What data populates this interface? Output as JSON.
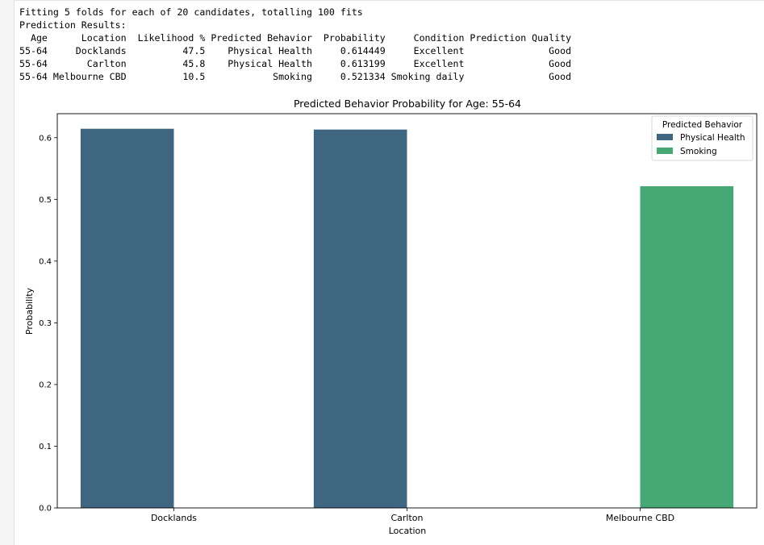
{
  "output": {
    "fit_message": "Fitting 5 folds for each of 20 candidates, totalling 100 fits",
    "results_heading": "Prediction Results:",
    "table_header": "  Age      Location  Likelihood % Predicted Behavior  Probability     Condition Prediction Quality",
    "table_rows": [
      "55-64     Docklands          47.5    Physical Health     0.614449     Excellent               Good",
      "55-64       Carlton          45.8    Physical Health     0.613199     Excellent               Good",
      "55-64 Melbourne CBD          10.5            Smoking     0.521334 Smoking daily               Good"
    ]
  },
  "chart_data": {
    "type": "bar",
    "title": "Predicted Behavior Probability for Age: 55-64",
    "xlabel": "Location",
    "ylabel": "Probability",
    "categories": [
      "Docklands",
      "Carlton",
      "Melbourne CBD"
    ],
    "ylim": [
      0,
      0.6389
    ],
    "yticks": [
      0.0,
      0.1,
      0.2,
      0.3,
      0.4,
      0.5,
      0.6
    ],
    "ytick_labels": [
      "0.0",
      "0.1",
      "0.2",
      "0.3",
      "0.4",
      "0.5",
      "0.6"
    ],
    "series": [
      {
        "name": "Physical Health",
        "color": "#3e6680",
        "values": [
          0.614449,
          0.613199,
          null
        ]
      },
      {
        "name": "Smoking",
        "color": "#45a875",
        "values": [
          null,
          null,
          0.521334
        ]
      }
    ],
    "legend": {
      "title": "Predicted Behavior",
      "location": "top-right"
    },
    "grid": false
  }
}
